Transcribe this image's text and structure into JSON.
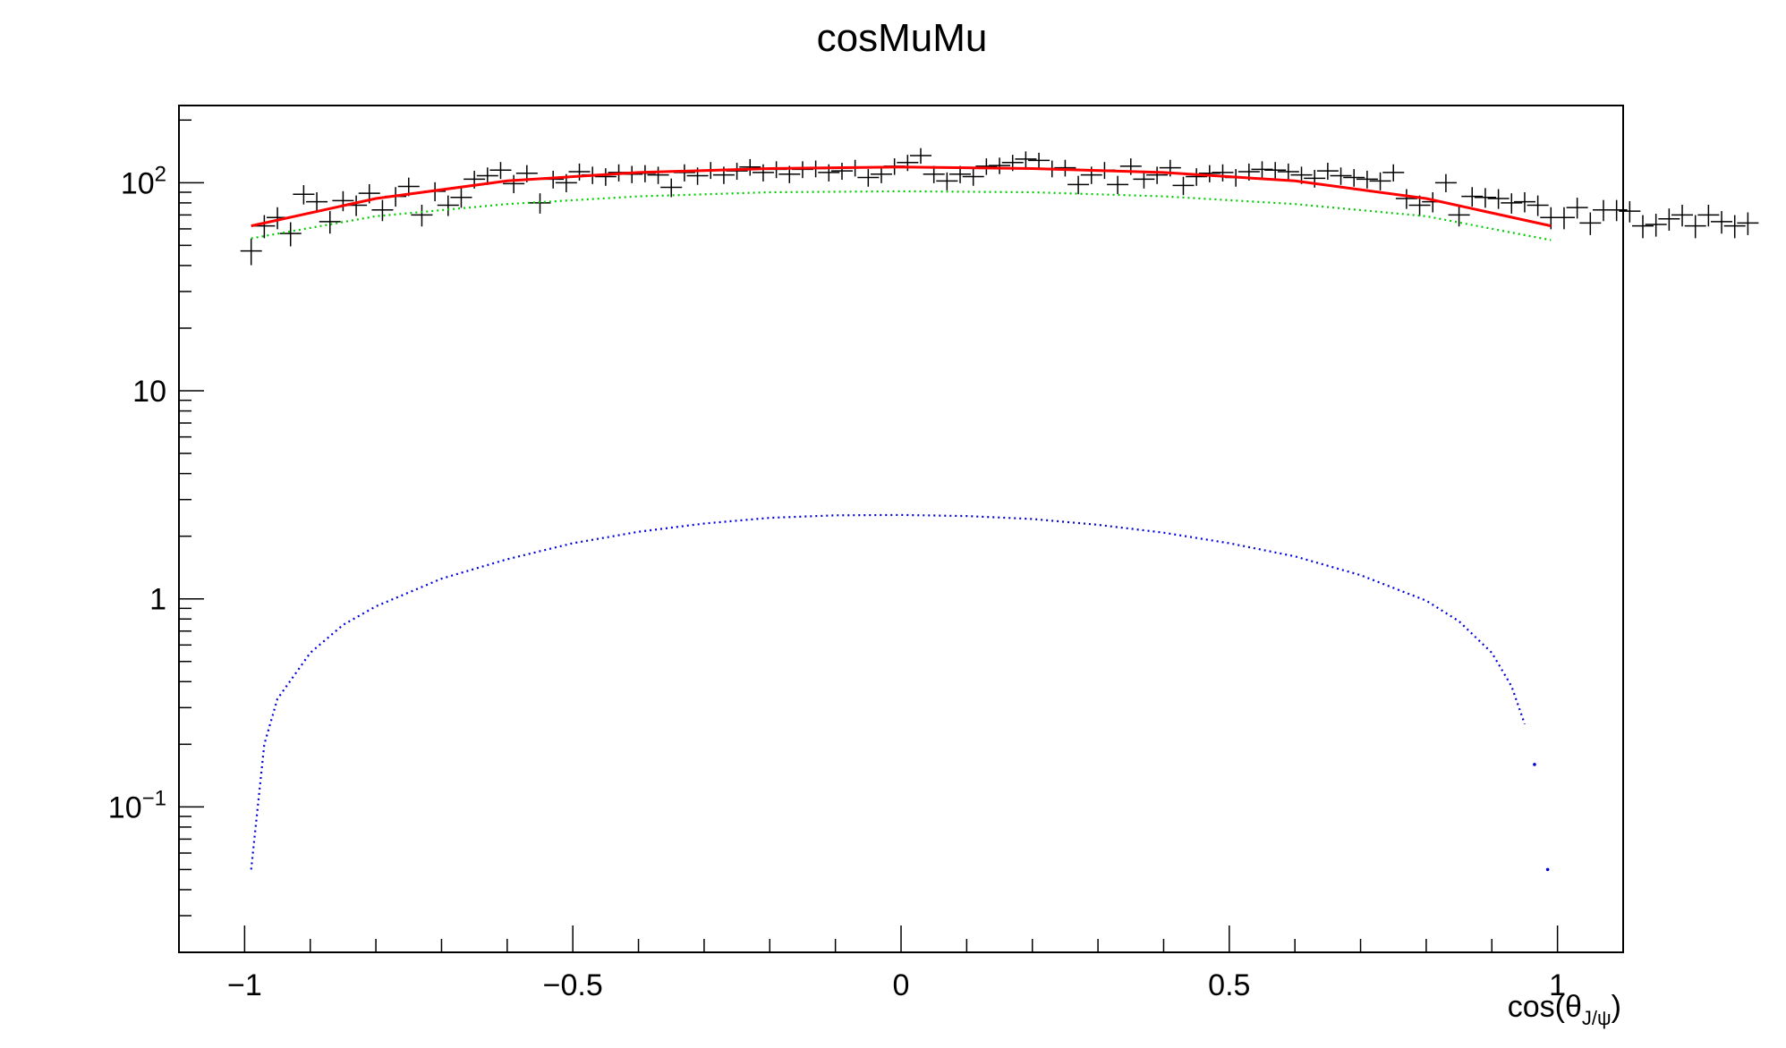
{
  "chart_data": {
    "type": "scatter",
    "title": "cosMuMu",
    "xlabel_main": "cos(θ",
    "xlabel_sub": "J/ψ",
    "xlabel_close": ")",
    "ylabel": "",
    "xlim": [
      -1.1,
      1.1
    ],
    "ylim": [
      0.02,
      235
    ],
    "y_scale": "log",
    "grid": false,
    "x_ticks": [
      {
        "value": -1,
        "label": "−1"
      },
      {
        "value": -0.5,
        "label": "−0.5"
      },
      {
        "value": 0,
        "label": "0"
      },
      {
        "value": 0.5,
        "label": "0.5"
      },
      {
        "value": 1,
        "label": "1"
      }
    ],
    "y_ticks": [
      {
        "value": 0.1,
        "base": "10",
        "exp": "−1"
      },
      {
        "value": 1,
        "base": "1",
        "exp": ""
      },
      {
        "value": 10,
        "base": "10",
        "exp": ""
      },
      {
        "value": 100,
        "base": "10",
        "exp": "2"
      }
    ],
    "colors": {
      "data": "#000000",
      "total_fit": "#ff0000",
      "component_green": "#00cc00",
      "component_blue": "#0000dd"
    },
    "series": [
      {
        "style": "points-with-errors",
        "x_start": -0.99,
        "x_step": 0.02,
        "values": [
          47,
          62,
          68,
          57,
          88,
          81,
          65,
          82,
          78,
          89,
          74,
          86,
          96,
          70,
          91,
          78,
          85,
          104,
          108,
          115,
          99,
          111,
          80,
          104,
          100,
          113,
          109,
          107,
          112,
          110,
          111,
          109,
          95,
          112,
          108,
          115,
          109,
          114,
          119,
          112,
          116,
          110,
          116,
          117,
          112,
          114,
          118,
          106,
          110,
          120,
          125,
          135,
          110,
          102,
          110,
          107,
          120,
          121,
          125,
          130,
          128,
          117,
          118,
          98,
          109,
          115,
          98,
          120,
          104,
          109,
          118,
          97,
          107,
          111,
          112,
          106,
          113,
          116,
          115,
          113,
          109,
          105,
          114,
          108,
          106,
          104,
          102,
          112,
          84,
          78,
          81,
          100,
          70,
          86,
          85,
          84,
          80,
          81,
          78,
          68,
          68,
          76,
          64,
          74,
          74,
          73,
          62,
          63,
          67,
          70,
          62,
          70,
          65,
          62,
          64
        ]
      },
      {
        "style": "line",
        "role": "total_fit",
        "points": [
          [
            -0.99,
            62
          ],
          [
            -0.8,
            84
          ],
          [
            -0.6,
            102
          ],
          [
            -0.4,
            112
          ],
          [
            -0.2,
            117
          ],
          [
            0,
            119
          ],
          [
            0.2,
            117
          ],
          [
            0.4,
            112
          ],
          [
            0.6,
            102
          ],
          [
            0.8,
            84
          ],
          [
            0.99,
            62
          ]
        ]
      },
      {
        "style": "dotted",
        "role": "component_green",
        "points": [
          [
            -0.99,
            54
          ],
          [
            -0.8,
            69
          ],
          [
            -0.6,
            79
          ],
          [
            -0.4,
            86
          ],
          [
            -0.2,
            90
          ],
          [
            0,
            91
          ],
          [
            0.2,
            90
          ],
          [
            0.4,
            86
          ],
          [
            0.6,
            79
          ],
          [
            0.8,
            69
          ],
          [
            0.99,
            53
          ]
        ]
      },
      {
        "style": "dotted",
        "role": "component_blue",
        "points": [
          [
            -0.99,
            0.05
          ],
          [
            -0.97,
            0.2
          ],
          [
            -0.95,
            0.33
          ],
          [
            -0.9,
            0.55
          ],
          [
            -0.85,
            0.75
          ],
          [
            -0.8,
            0.92
          ],
          [
            -0.7,
            1.25
          ],
          [
            -0.6,
            1.55
          ],
          [
            -0.5,
            1.85
          ],
          [
            -0.4,
            2.1
          ],
          [
            -0.3,
            2.3
          ],
          [
            -0.2,
            2.45
          ],
          [
            -0.1,
            2.52
          ],
          [
            0,
            2.53
          ],
          [
            0.1,
            2.5
          ],
          [
            0.2,
            2.42
          ],
          [
            0.3,
            2.27
          ],
          [
            0.4,
            2.08
          ],
          [
            0.5,
            1.85
          ],
          [
            0.6,
            1.6
          ],
          [
            0.7,
            1.3
          ],
          [
            0.8,
            0.98
          ],
          [
            0.85,
            0.78
          ],
          [
            0.9,
            0.55
          ],
          [
            0.93,
            0.38
          ],
          [
            0.95,
            0.25
          ]
        ],
        "extra_points": [
          [
            0.965,
            0.16
          ],
          [
            0.985,
            0.05
          ]
        ]
      }
    ]
  }
}
